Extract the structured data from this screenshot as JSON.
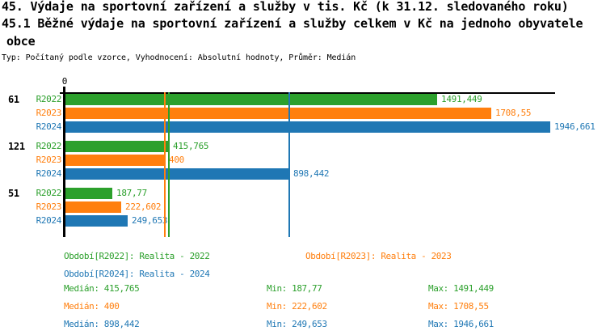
{
  "header": {
    "title_line1": "45. Výdaje na sportovní zařízení a služby v tis. Kč (k 31.12. sledovaného roku)",
    "title_line2": "45.1 Běžné výdaje na sportovní zařízení a služby celkem v Kč na jednoho obyvatele",
    "title_line3": "obce",
    "meta": "Typ: Počítaný podle vzorce, Vyhodnocení: Absolutní hodnoty, Průměr: Medián"
  },
  "colors": {
    "R2022": "#2ca02c",
    "R2023": "#ff7f0e",
    "R2024": "#1f77b4",
    "axis": "#000000"
  },
  "chart_data": {
    "type": "bar",
    "orientation": "horizontal",
    "origin_tick_label": "0",
    "xlim": [
      0,
      1963
    ],
    "grid": false,
    "categories": [
      "61",
      "121",
      "51"
    ],
    "series": [
      {
        "name": "R2022",
        "color": "#2ca02c",
        "values": [
          1491.449,
          415.765,
          187.77
        ],
        "labels": [
          "1491,449",
          "415,765",
          "187,77"
        ],
        "median": 415.765
      },
      {
        "name": "R2023",
        "color": "#ff7f0e",
        "values": [
          1708.55,
          400,
          222.602
        ],
        "labels": [
          "1708,55",
          "400",
          "222,602"
        ],
        "median": 400
      },
      {
        "name": "R2024",
        "color": "#1f77b4",
        "values": [
          1946.661,
          898.442,
          249.653
        ],
        "labels": [
          "1946,661",
          "898,442",
          "249,653"
        ],
        "median": 898.442
      }
    ],
    "median_lines": [
      {
        "series": "R2022",
        "value": 415.765,
        "color": "#2ca02c"
      },
      {
        "series": "R2023",
        "value": 400,
        "color": "#ff7f0e"
      },
      {
        "series": "R2024",
        "value": 898.442,
        "color": "#1f77b4"
      }
    ]
  },
  "legend": {
    "periods": [
      {
        "text": "Období[R2022]: Realita - 2022",
        "color": "#2ca02c"
      },
      {
        "text": "Období[R2023]: Realita - 2023",
        "color": "#ff7f0e"
      },
      {
        "text": "Období[R2024]: Realita - 2024",
        "color": "#1f77b4"
      }
    ],
    "stats": [
      {
        "color": "#2ca02c",
        "median": "Medián: 415,765",
        "min": "Min: 187,77",
        "max": "Max: 1491,449"
      },
      {
        "color": "#ff7f0e",
        "median": "Medián: 400",
        "min": "Min: 222,602",
        "max": "Max: 1708,55"
      },
      {
        "color": "#1f77b4",
        "median": "Medián: 898,442",
        "min": "Min: 249,653",
        "max": "Max: 1946,661"
      }
    ]
  }
}
